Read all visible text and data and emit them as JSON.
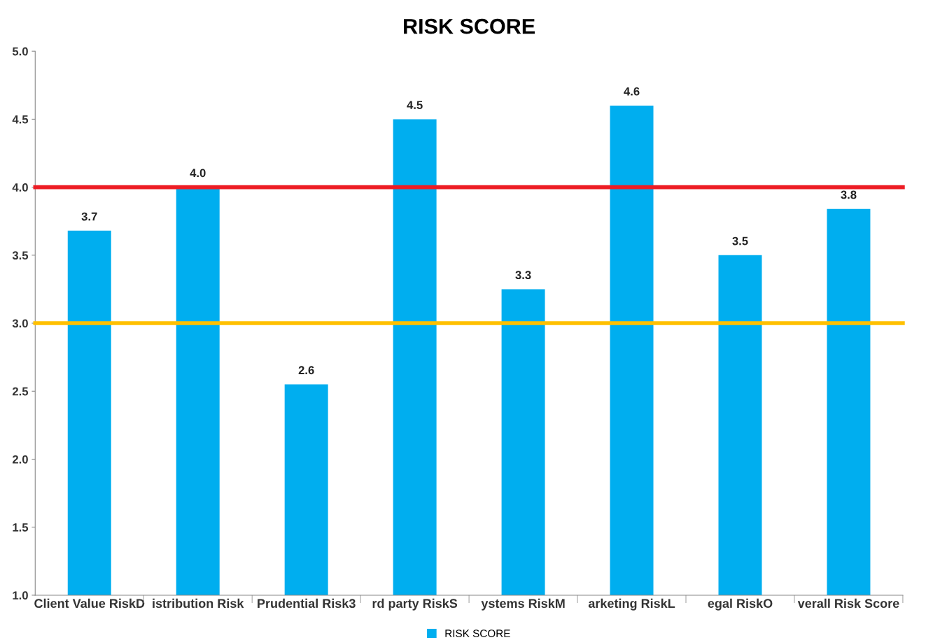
{
  "chart_data": {
    "type": "bar",
    "title": "RISK SCORE",
    "categories": [
      "Client Value RiskD",
      "istribution Risk",
      "Prudential Risk3",
      "rd party RiskS",
      "ystems RiskM",
      "arketing RiskL",
      "egal RiskO",
      "verall Risk Score"
    ],
    "series": [
      {
        "name": "RISK SCORE",
        "color": "#00aeef",
        "values": [
          3.68,
          4.0,
          2.55,
          4.5,
          3.25,
          4.6,
          3.5,
          3.84
        ],
        "value_labels": [
          "3.7",
          "4.0",
          "2.6",
          "4.5",
          "3.3",
          "4.6",
          "3.5",
          "3.8"
        ]
      }
    ],
    "ylim": [
      1,
      5
    ],
    "yticks": [
      {
        "value": 1,
        "label": "1.0"
      },
      {
        "value": 1.5,
        "label": "1.5"
      },
      {
        "value": 2,
        "label": "2.0"
      },
      {
        "value": 2.5,
        "label": "2.5"
      },
      {
        "value": 3,
        "label": "3.0"
      },
      {
        "value": 3.5,
        "label": "3.5"
      },
      {
        "value": 4,
        "label": "4.0"
      },
      {
        "value": 4.5,
        "label": "4.5"
      },
      {
        "value": 5,
        "label": "5.0"
      }
    ],
    "ref_lines": [
      {
        "axis": "y",
        "value": 4,
        "color": "#ed1c24"
      },
      {
        "axis": "y",
        "value": 3,
        "color": "#ffc000"
      }
    ],
    "grid": false,
    "legend": "bottom"
  }
}
